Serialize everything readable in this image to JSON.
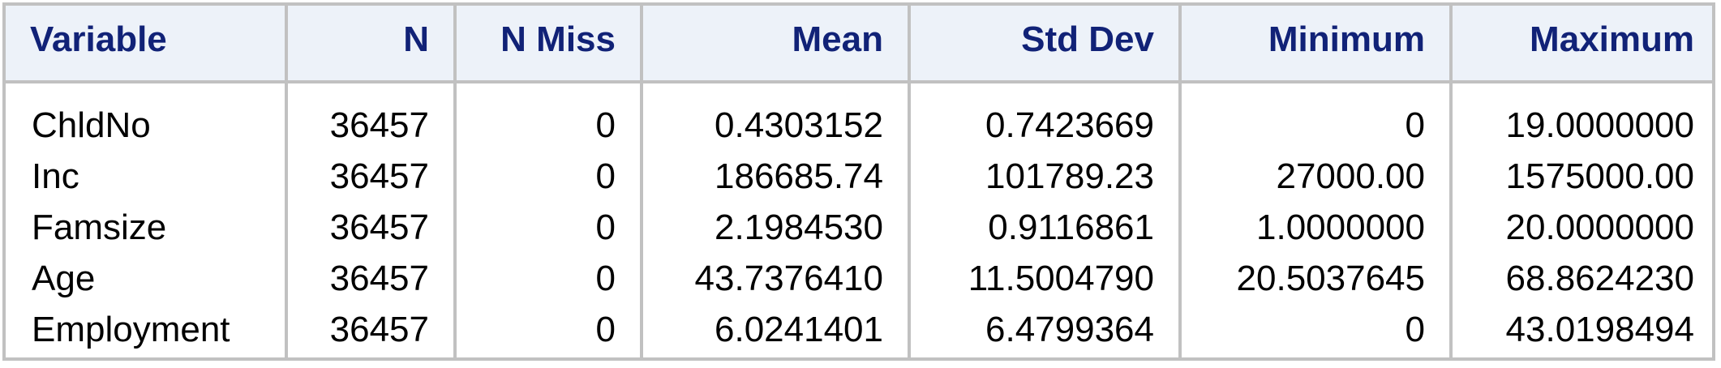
{
  "table": {
    "columns": [
      "Variable",
      "N",
      "N Miss",
      "Mean",
      "Std Dev",
      "Minimum",
      "Maximum"
    ],
    "rows": [
      [
        "ChldNo",
        "36457",
        "0",
        "0.4303152",
        "0.7423669",
        "0",
        "19.0000000"
      ],
      [
        "Inc",
        "36457",
        "0",
        "186685.74",
        "101789.23",
        "27000.00",
        "1575000.00"
      ],
      [
        "Famsize",
        "36457",
        "0",
        "2.1984530",
        "0.9116861",
        "1.0000000",
        "20.0000000"
      ],
      [
        "Age",
        "36457",
        "0",
        "43.7376410",
        "11.5004790",
        "20.5037645",
        "68.8624230"
      ],
      [
        "Employment",
        "36457",
        "0",
        "6.0241401",
        "6.4799364",
        "0",
        "43.0198494"
      ]
    ]
  },
  "colors": {
    "header_bg": "#edf2f9",
    "header_text": "#112277",
    "border": "#c1c1c1"
  }
}
